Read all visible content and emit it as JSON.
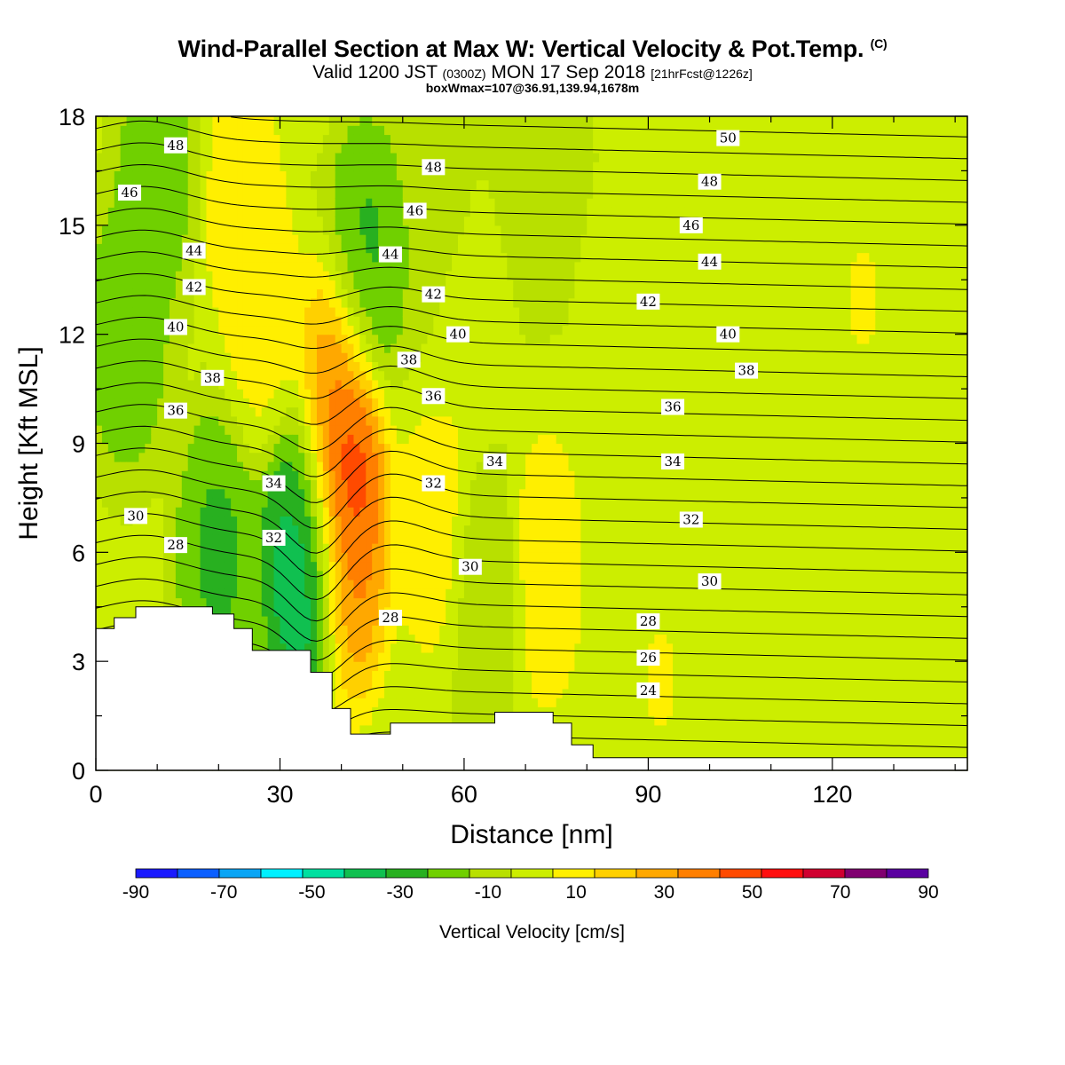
{
  "header": {
    "title": "Wind-Parallel Section at Max W: Vertical Velocity & Pot.Temp.",
    "title_mark": "(C)",
    "sub_a": "Valid 1200 JST",
    "sub_b": "(0300Z)",
    "sub_c": "MON 17 Sep 2018",
    "sub_d": "[21hrFcst@1226z]",
    "sub_line2": "boxWmax=107@36.91,139.94,1678m"
  },
  "chart_data": {
    "type": "heatmap",
    "xlabel": "Distance [nm]",
    "ylabel": "Height [Kft MSL]",
    "xlim": [
      0,
      142
    ],
    "ylim": [
      0,
      18
    ],
    "x_ticks": [
      "0",
      "30",
      "60",
      "90",
      "120"
    ],
    "y_ticks": [
      "0",
      "3",
      "6",
      "9",
      "12",
      "15",
      "18"
    ],
    "colorbar": {
      "title": "Vertical Velocity [cm/s]",
      "labels": [
        "-90",
        "-70",
        "-50",
        "-30",
        "-10",
        "10",
        "30",
        "50",
        "70",
        "90"
      ],
      "bins": [
        -90,
        -80,
        -70,
        -60,
        -50,
        -40,
        -30,
        -20,
        -10,
        0,
        10,
        20,
        30,
        40,
        50,
        60,
        70,
        80,
        90
      ],
      "colors": [
        "#1a1aff",
        "#0b5fff",
        "#0aa5f5",
        "#00f0ff",
        "#00e0a0",
        "#10c050",
        "#28b020",
        "#70d000",
        "#b8e000",
        "#ccee00",
        "#ffef00",
        "#ffd000",
        "#ffa800",
        "#ff7f00",
        "#ff4a00",
        "#ff0f0f",
        "#d00030",
        "#800070",
        "#5a00a0"
      ]
    },
    "velocity_features": [
      {
        "x": 40,
        "y": 8.0,
        "w": 75
      },
      {
        "x": 39,
        "y": 10.5,
        "w": 40
      },
      {
        "x": 41,
        "y": 5.5,
        "w": 45
      },
      {
        "x": 34.5,
        "y": 5.5,
        "w": -50
      },
      {
        "x": 33,
        "y": 7.0,
        "w": -30
      },
      {
        "x": 44,
        "y": 14.0,
        "w": -25
      },
      {
        "x": 20,
        "y": 6.0,
        "w": -25
      },
      {
        "x": 5,
        "y": 12.0,
        "w": -20
      },
      {
        "x": 10,
        "y": 16.5,
        "w": -18
      },
      {
        "x": 55,
        "y": 15.0,
        "w": -10
      },
      {
        "x": 64,
        "y": 5.0,
        "w": -12
      },
      {
        "x": 72,
        "y": 17.0,
        "w": -10
      },
      {
        "x": 24,
        "y": 15.5,
        "w": 22
      },
      {
        "x": 28,
        "y": 12.0,
        "w": 18
      },
      {
        "x": 55,
        "y": 6.5,
        "w": 18
      },
      {
        "x": 73,
        "y": 5.5,
        "w": 22
      },
      {
        "x": 60,
        "y": 12.0,
        "w": 12
      },
      {
        "x": 86,
        "y": 12.0,
        "w": 8
      },
      {
        "x": 125,
        "y": 13.0,
        "w": 12
      },
      {
        "x": 92,
        "y": 2.5,
        "w": 12
      }
    ],
    "theta_contour_labels": [
      {
        "x": 13,
        "y": 17.2,
        "text": "48"
      },
      {
        "x": 5.5,
        "y": 15.9,
        "text": "46"
      },
      {
        "x": 16,
        "y": 14.3,
        "text": "44"
      },
      {
        "x": 16,
        "y": 13.3,
        "text": "42"
      },
      {
        "x": 13,
        "y": 12.2,
        "text": "40"
      },
      {
        "x": 19,
        "y": 10.8,
        "text": "38"
      },
      {
        "x": 13,
        "y": 9.9,
        "text": "36"
      },
      {
        "x": 29,
        "y": 7.9,
        "text": "34"
      },
      {
        "x": 6.5,
        "y": 7.0,
        "text": "30"
      },
      {
        "x": 29,
        "y": 6.4,
        "text": "32"
      },
      {
        "x": 13,
        "y": 6.2,
        "text": "28"
      },
      {
        "x": 55,
        "y": 16.6,
        "text": "48"
      },
      {
        "x": 52,
        "y": 15.4,
        "text": "46"
      },
      {
        "x": 48,
        "y": 14.2,
        "text": "44"
      },
      {
        "x": 55,
        "y": 13.1,
        "text": "42"
      },
      {
        "x": 59,
        "y": 12.0,
        "text": "40"
      },
      {
        "x": 51,
        "y": 11.3,
        "text": "38"
      },
      {
        "x": 55,
        "y": 10.3,
        "text": "36"
      },
      {
        "x": 65,
        "y": 8.5,
        "text": "34"
      },
      {
        "x": 55,
        "y": 7.9,
        "text": "32"
      },
      {
        "x": 61,
        "y": 5.6,
        "text": "30"
      },
      {
        "x": 48,
        "y": 4.2,
        "text": "28"
      },
      {
        "x": 103,
        "y": 17.4,
        "text": "50"
      },
      {
        "x": 100,
        "y": 16.2,
        "text": "48"
      },
      {
        "x": 97,
        "y": 15.0,
        "text": "46"
      },
      {
        "x": 100,
        "y": 14.0,
        "text": "44"
      },
      {
        "x": 90,
        "y": 12.9,
        "text": "42"
      },
      {
        "x": 103,
        "y": 12.0,
        "text": "40"
      },
      {
        "x": 106,
        "y": 11.0,
        "text": "38"
      },
      {
        "x": 94,
        "y": 10.0,
        "text": "36"
      },
      {
        "x": 94,
        "y": 8.5,
        "text": "34"
      },
      {
        "x": 97,
        "y": 6.9,
        "text": "32"
      },
      {
        "x": 100,
        "y": 5.2,
        "text": "30"
      },
      {
        "x": 90,
        "y": 4.1,
        "text": "28"
      },
      {
        "x": 90,
        "y": 3.1,
        "text": "26"
      },
      {
        "x": 90,
        "y": 2.2,
        "text": "24"
      }
    ],
    "terrain": [
      [
        0,
        3.9
      ],
      [
        3,
        3.9
      ],
      [
        3,
        4.2
      ],
      [
        6.5,
        4.2
      ],
      [
        6.5,
        4.5
      ],
      [
        19,
        4.5
      ],
      [
        19,
        4.3
      ],
      [
        22.5,
        4.3
      ],
      [
        22.5,
        3.9
      ],
      [
        25.5,
        3.9
      ],
      [
        25.5,
        3.3
      ],
      [
        35,
        3.3
      ],
      [
        35,
        2.7
      ],
      [
        38.5,
        2.7
      ],
      [
        38.5,
        1.7
      ],
      [
        41.5,
        1.7
      ],
      [
        41.5,
        1.0
      ],
      [
        48,
        1.0
      ],
      [
        48,
        1.3
      ],
      [
        65,
        1.3
      ],
      [
        65,
        1.6
      ],
      [
        74.5,
        1.6
      ],
      [
        74.5,
        1.3
      ],
      [
        77.5,
        1.3
      ],
      [
        77.5,
        0.7
      ],
      [
        81,
        0.7
      ],
      [
        81,
        0.35
      ],
      [
        142,
        0.35
      ]
    ]
  }
}
